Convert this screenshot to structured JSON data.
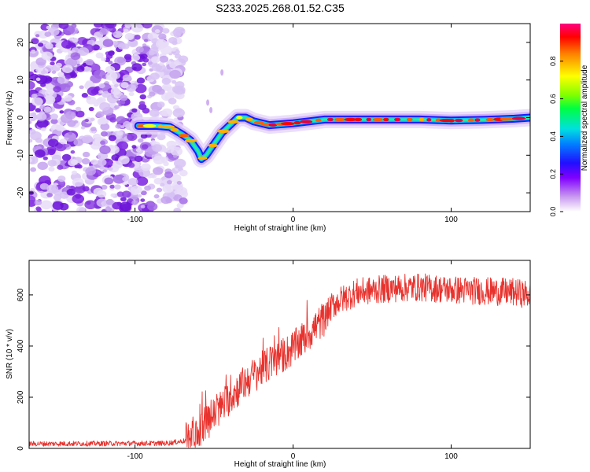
{
  "title": "S233.2025.268.01.52.C35",
  "chart_data": [
    {
      "type": "heatmap",
      "xlabel": "Height of straight line (km)",
      "ylabel": "Frequency (Hz)",
      "xlim": [
        -167,
        150
      ],
      "ylim": [
        -25,
        25
      ],
      "xticks": [
        -100,
        0,
        100
      ],
      "xtick_labels": [
        "-100",
        "0",
        "100"
      ],
      "yticks": [
        -20,
        -10,
        0,
        10,
        20
      ],
      "ytick_labels": [
        "-20",
        "-10",
        "0",
        "10",
        "20"
      ],
      "colorbar": {
        "label": "Normalized spectral amplitude",
        "range": [
          0,
          1
        ],
        "ticks": [
          0,
          0.2,
          0.4,
          0.6,
          0.8
        ],
        "tick_labels": [
          "0.0",
          "0.2",
          "0.4",
          "0.6",
          "0.8"
        ]
      },
      "ridge": {
        "description_points": [
          [
            -98,
            -2.2
          ],
          [
            -86,
            -2.2
          ],
          [
            -78,
            -2.5
          ],
          [
            -70,
            -4.5
          ],
          [
            -65,
            -6
          ],
          [
            -60,
            -9
          ],
          [
            -58,
            -11
          ],
          [
            -55,
            -10
          ],
          [
            -50,
            -7
          ],
          [
            -45,
            -4
          ],
          [
            -40,
            -2
          ],
          [
            -35,
            0
          ],
          [
            -30,
            0
          ],
          [
            -25,
            -1
          ],
          [
            -15,
            -2
          ],
          [
            0,
            -1.5
          ],
          [
            10,
            -1
          ],
          [
            20,
            -0.5
          ],
          [
            40,
            -0.5
          ],
          [
            60,
            -0.5
          ],
          [
            80,
            -0.5
          ],
          [
            100,
            -0.8
          ],
          [
            120,
            -0.6
          ],
          [
            140,
            -0.3
          ],
          [
            150,
            0
          ]
        ]
      },
      "noise_region_x": [
        -167,
        -75
      ]
    },
    {
      "type": "line",
      "xlabel": "Height of straight line (km)",
      "ylabel": "SNR (10 * v/v)",
      "xlim": [
        -167,
        150
      ],
      "ylim": [
        0,
        735
      ],
      "xticks": [
        -100,
        0,
        100
      ],
      "xtick_labels": [
        "-100",
        "0",
        "100"
      ],
      "yticks": [
        0,
        200,
        400,
        600
      ],
      "ytick_labels": [
        "0",
        "200",
        "400",
        "600"
      ],
      "color": "#e8322d",
      "trend": {
        "x": [
          -167,
          -80,
          -68,
          -60,
          -50,
          -40,
          -30,
          -20,
          -10,
          0,
          10,
          20,
          25,
          30,
          40,
          60,
          80,
          100,
          120,
          140,
          150
        ],
        "y": [
          18,
          20,
          30,
          70,
          130,
          200,
          260,
          310,
          350,
          390,
          450,
          510,
          560,
          580,
          610,
          625,
          630,
          620,
          615,
          610,
          600
        ]
      }
    }
  ]
}
